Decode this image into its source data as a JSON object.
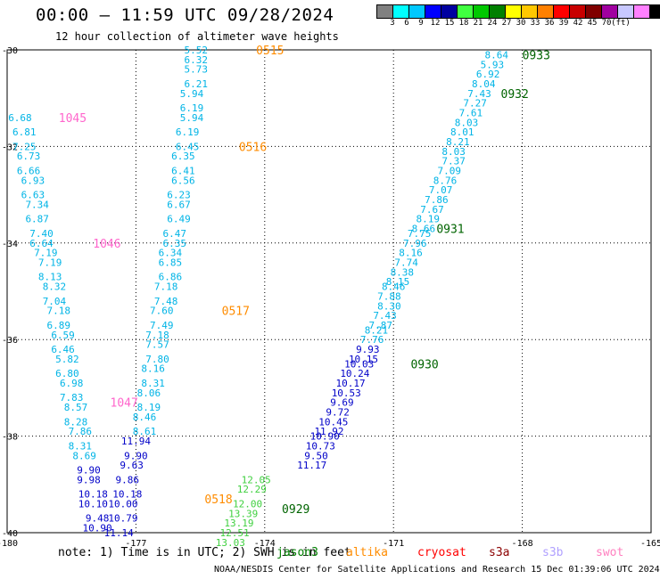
{
  "header": {
    "title": "00:00 – 11:59 UTC 09/28/2024",
    "subtitle": "12 hour collection of altimeter wave heights"
  },
  "legend": {
    "colors": [
      "#808080",
      "#00ffff",
      "#00c8ff",
      "#0000ff",
      "#0000a0",
      "#40ff40",
      "#00c800",
      "#008000",
      "#ffff00",
      "#ffc800",
      "#ff8000",
      "#ff0000",
      "#c80000",
      "#800000",
      "#a000a0",
      "#c8c8ff",
      "#ff80ff",
      "#000000"
    ],
    "labels": [
      "3",
      "6",
      "9",
      "12",
      "15",
      "18",
      "21",
      "24",
      "27",
      "30",
      "33",
      "36",
      "39",
      "42",
      "45",
      "70",
      "(ft)"
    ]
  },
  "map": {
    "lon_ticks": [
      "-180",
      "-177",
      "-174",
      "-171",
      "-168",
      "-165"
    ],
    "lat_ticks": [
      "-30",
      "-32",
      "-34",
      "-36",
      "-38",
      "-40"
    ],
    "lon_values": [
      -180,
      -177,
      -174,
      -171,
      -168,
      -165
    ],
    "lat_values": [
      -30,
      -32,
      -34,
      -36,
      -38,
      -40
    ],
    "lon_range": [
      -180,
      -165
    ],
    "lat_range": [
      -40,
      -30
    ],
    "grid": "dotted",
    "time_labels": [
      {
        "text": "0515",
        "lon": -174.2,
        "lat": -30.0,
        "color": "#ff8c00"
      },
      {
        "text": "0516",
        "lon": -174.6,
        "lat": -32.0,
        "color": "#ff8c00"
      },
      {
        "text": "0517",
        "lon": -175.0,
        "lat": -35.4,
        "color": "#ff8c00"
      },
      {
        "text": "0518",
        "lon": -175.4,
        "lat": -39.3,
        "color": "#ff8c00"
      },
      {
        "text": "1045",
        "lon": -178.8,
        "lat": -31.4,
        "color": "#ff66cc"
      },
      {
        "text": "1046",
        "lon": -178.0,
        "lat": -34.0,
        "color": "#ff66cc"
      },
      {
        "text": "1047",
        "lon": -177.6,
        "lat": -37.3,
        "color": "#ff66cc"
      },
      {
        "text": "0929",
        "lon": -173.6,
        "lat": -39.5,
        "color": "#006400"
      },
      {
        "text": "0930",
        "lon": -170.6,
        "lat": -36.5,
        "color": "#006400"
      },
      {
        "text": "0931",
        "lon": -170.0,
        "lat": -33.7,
        "color": "#006400"
      },
      {
        "text": "0932",
        "lon": -168.5,
        "lat": -30.9,
        "color": "#006400"
      },
      {
        "text": "0933",
        "lon": -168.0,
        "lat": -30.1,
        "color": "#006400"
      }
    ],
    "tracks": [
      {
        "name": "track-0515",
        "color": "#00b4e6",
        "points": [
          {
            "v": "5.52",
            "lon": -175.6,
            "lat": -30.0
          },
          {
            "v": "6.32",
            "lon": -175.6,
            "lat": -30.2
          },
          {
            "v": "5.73",
            "lon": -175.6,
            "lat": -30.4
          },
          {
            "v": "6.21",
            "lon": -175.6,
            "lat": -30.7
          },
          {
            "v": "5.94",
            "lon": -175.7,
            "lat": -30.9
          },
          {
            "v": "6.19",
            "lon": -175.7,
            "lat": -31.2
          },
          {
            "v": "5.94",
            "lon": -175.7,
            "lat": -31.4
          },
          {
            "v": "6.19",
            "lon": -175.8,
            "lat": -31.7
          },
          {
            "v": "6.45",
            "lon": -175.8,
            "lat": -32.0
          },
          {
            "v": "6.35",
            "lon": -175.9,
            "lat": -32.2
          },
          {
            "v": "6.41",
            "lon": -175.9,
            "lat": -32.5
          },
          {
            "v": "6.56",
            "lon": -175.9,
            "lat": -32.7
          },
          {
            "v": "6.23",
            "lon": -176.0,
            "lat": -33.0
          },
          {
            "v": "6.67",
            "lon": -176.0,
            "lat": -33.2
          },
          {
            "v": "6.49",
            "lon": -176.0,
            "lat": -33.5
          },
          {
            "v": "6.47",
            "lon": -176.1,
            "lat": -33.8
          },
          {
            "v": "6.35",
            "lon": -176.1,
            "lat": -34.0
          },
          {
            "v": "6.34",
            "lon": -176.2,
            "lat": -34.2
          },
          {
            "v": "6.85",
            "lon": -176.2,
            "lat": -34.4
          },
          {
            "v": "6.86",
            "lon": -176.2,
            "lat": -34.7
          },
          {
            "v": "7.18",
            "lon": -176.3,
            "lat": -34.9
          },
          {
            "v": "7.48",
            "lon": -176.3,
            "lat": -35.2
          },
          {
            "v": "7.60",
            "lon": -176.4,
            "lat": -35.4
          },
          {
            "v": "7.49",
            "lon": -176.4,
            "lat": -35.7
          },
          {
            "v": "7.18",
            "lon": -176.5,
            "lat": -35.9
          },
          {
            "v": "7.57",
            "lon": -176.5,
            "lat": -36.1
          },
          {
            "v": "7.80",
            "lon": -176.5,
            "lat": -36.4
          },
          {
            "v": "8.16",
            "lon": -176.6,
            "lat": -36.6
          },
          {
            "v": "8.31",
            "lon": -176.6,
            "lat": -36.9
          },
          {
            "v": "8.06",
            "lon": -176.7,
            "lat": -37.1
          },
          {
            "v": "8.19",
            "lon": -176.7,
            "lat": -37.4
          },
          {
            "v": "8.46",
            "lon": -176.8,
            "lat": -37.6
          },
          {
            "v": "8.61",
            "lon": -176.8,
            "lat": -37.9
          }
        ]
      },
      {
        "name": "track-0518",
        "color": "#0000c8",
        "points": [
          {
            "v": "11.94",
            "lon": -177.0,
            "lat": -38.1
          },
          {
            "v": "9.90",
            "lon": -177.0,
            "lat": -38.4
          },
          {
            "v": "9.63",
            "lon": -177.1,
            "lat": -38.6
          },
          {
            "v": "9.86",
            "lon": -177.2,
            "lat": -38.9
          },
          {
            "v": "10.18",
            "lon": -177.2,
            "lat": -39.2
          },
          {
            "v": "10.00",
            "lon": -177.3,
            "lat": -39.4
          },
          {
            "v": "10.79",
            "lon": -177.3,
            "lat": -39.7
          },
          {
            "v": "11.14",
            "lon": -177.4,
            "lat": -40.0
          }
        ]
      },
      {
        "name": "track-1045",
        "color": "#00b4e6",
        "points": [
          {
            "v": "6.68",
            "lon": -179.7,
            "lat": -31.4
          },
          {
            "v": "6.81",
            "lon": -179.6,
            "lat": -31.7
          },
          {
            "v": "7.25",
            "lon": -179.6,
            "lat": -32.0
          },
          {
            "v": "6.73",
            "lon": -179.5,
            "lat": -32.2
          },
          {
            "v": "6.66",
            "lon": -179.5,
            "lat": -32.5
          },
          {
            "v": "6.93",
            "lon": -179.4,
            "lat": -32.7
          },
          {
            "v": "6.63",
            "lon": -179.4,
            "lat": -33.0
          },
          {
            "v": "7.34",
            "lon": -179.3,
            "lat": -33.2
          },
          {
            "v": "6.87",
            "lon": -179.3,
            "lat": -33.5
          },
          {
            "v": "7.40",
            "lon": -179.2,
            "lat": -33.8
          },
          {
            "v": "6.64",
            "lon": -179.2,
            "lat": -34.0
          },
          {
            "v": "7.19",
            "lon": -179.1,
            "lat": -34.2
          },
          {
            "v": "7.19",
            "lon": -179.0,
            "lat": -34.4
          },
          {
            "v": "8.13",
            "lon": -179.0,
            "lat": -34.7
          },
          {
            "v": "8.32",
            "lon": -178.9,
            "lat": -34.9
          },
          {
            "v": "7.04",
            "lon": -178.9,
            "lat": -35.2
          },
          {
            "v": "7.18",
            "lon": -178.8,
            "lat": -35.4
          },
          {
            "v": "6.89",
            "lon": -178.8,
            "lat": -35.7
          },
          {
            "v": "6.59",
            "lon": -178.7,
            "lat": -35.9
          },
          {
            "v": "6.46",
            "lon": -178.7,
            "lat": -36.2
          },
          {
            "v": "5.82",
            "lon": -178.6,
            "lat": -36.4
          },
          {
            "v": "6.80",
            "lon": -178.6,
            "lat": -36.7
          },
          {
            "v": "6.98",
            "lon": -178.5,
            "lat": -36.9
          },
          {
            "v": "7.83",
            "lon": -178.5,
            "lat": -37.2
          },
          {
            "v": "8.57",
            "lon": -178.4,
            "lat": -37.4
          },
          {
            "v": "8.28",
            "lon": -178.4,
            "lat": -37.7
          },
          {
            "v": "7.86",
            "lon": -178.3,
            "lat": -37.9
          },
          {
            "v": "8.31",
            "lon": -178.3,
            "lat": -38.2
          },
          {
            "v": "8.69",
            "lon": -178.2,
            "lat": -38.4
          }
        ]
      },
      {
        "name": "track-1047",
        "color": "#0000c8",
        "points": [
          {
            "v": "9.90",
            "lon": -178.1,
            "lat": -38.7
          },
          {
            "v": "9.98",
            "lon": -178.1,
            "lat": -38.9
          },
          {
            "v": "10.18",
            "lon": -178.0,
            "lat": -39.2
          },
          {
            "v": "10.10",
            "lon": -178.0,
            "lat": -39.4
          },
          {
            "v": "9.48",
            "lon": -177.9,
            "lat": -39.7
          },
          {
            "v": "10.90",
            "lon": -177.9,
            "lat": -39.9
          }
        ]
      },
      {
        "name": "track-0929",
        "color": "#40d040",
        "points": [
          {
            "v": "12.05",
            "lon": -174.2,
            "lat": -38.9
          },
          {
            "v": "12.29",
            "lon": -174.3,
            "lat": -39.1
          },
          {
            "v": "12.00",
            "lon": -174.4,
            "lat": -39.4
          },
          {
            "v": "13.39",
            "lon": -174.5,
            "lat": -39.6
          },
          {
            "v": "13.19",
            "lon": -174.6,
            "lat": -39.8
          },
          {
            "v": "12.51",
            "lon": -174.7,
            "lat": -40.0
          },
          {
            "v": "13.03",
            "lon": -174.8,
            "lat": -40.2
          }
        ]
      },
      {
        "name": "track-0930",
        "color": "#0000c8",
        "points": [
          {
            "v": "9.93",
            "lon": -171.6,
            "lat": -36.2
          },
          {
            "v": "10.15",
            "lon": -171.7,
            "lat": -36.4
          },
          {
            "v": "10.03",
            "lon": -171.8,
            "lat": -36.5
          },
          {
            "v": "10.24",
            "lon": -171.9,
            "lat": -36.7
          },
          {
            "v": "10.17",
            "lon": -172.0,
            "lat": -36.9
          },
          {
            "v": "10.53",
            "lon": -172.1,
            "lat": -37.1
          },
          {
            "v": "9.69",
            "lon": -172.2,
            "lat": -37.3
          },
          {
            "v": "9.72",
            "lon": -172.3,
            "lat": -37.5
          },
          {
            "v": "10.45",
            "lon": -172.4,
            "lat": -37.7
          },
          {
            "v": "11.92",
            "lon": -172.5,
            "lat": -37.9
          },
          {
            "v": "10.90",
            "lon": -172.6,
            "lat": -38.0
          },
          {
            "v": "10.73",
            "lon": -172.7,
            "lat": -38.2
          },
          {
            "v": "9.50",
            "lon": -172.8,
            "lat": -38.4
          },
          {
            "v": "11.17",
            "lon": -172.9,
            "lat": -38.6
          }
        ]
      },
      {
        "name": "track-0933",
        "color": "#00b4e6",
        "points": [
          {
            "v": "8.64",
            "lon": -168.6,
            "lat": -30.1
          },
          {
            "v": "5.93",
            "lon": -168.7,
            "lat": -30.3
          },
          {
            "v": "6.92",
            "lon": -168.8,
            "lat": -30.5
          },
          {
            "v": "8.04",
            "lon": -168.9,
            "lat": -30.7
          },
          {
            "v": "7.43",
            "lon": -169.0,
            "lat": -30.9
          },
          {
            "v": "7.27",
            "lon": -169.1,
            "lat": -31.1
          },
          {
            "v": "7.61",
            "lon": -169.2,
            "lat": -31.3
          },
          {
            "v": "8.03",
            "lon": -169.3,
            "lat": -31.5
          },
          {
            "v": "8.01",
            "lon": -169.4,
            "lat": -31.7
          },
          {
            "v": "8.21",
            "lon": -169.5,
            "lat": -31.9
          },
          {
            "v": "8.03",
            "lon": -169.6,
            "lat": -32.1
          },
          {
            "v": "7.37",
            "lon": -169.6,
            "lat": -32.3
          },
          {
            "v": "7.09",
            "lon": -169.7,
            "lat": -32.5
          },
          {
            "v": "8.76",
            "lon": -169.8,
            "lat": -32.7
          },
          {
            "v": "7.07",
            "lon": -169.9,
            "lat": -32.9
          },
          {
            "v": "7.86",
            "lon": -170.0,
            "lat": -33.1
          },
          {
            "v": "7.67",
            "lon": -170.1,
            "lat": -33.3
          },
          {
            "v": "8.19",
            "lon": -170.2,
            "lat": -33.5
          },
          {
            "v": "8.66",
            "lon": -170.3,
            "lat": -33.7
          },
          {
            "v": "7.75",
            "lon": -170.4,
            "lat": -33.8
          },
          {
            "v": "7.96",
            "lon": -170.5,
            "lat": -34.0
          },
          {
            "v": "8.16",
            "lon": -170.6,
            "lat": -34.2
          },
          {
            "v": "7.74",
            "lon": -170.7,
            "lat": -34.4
          },
          {
            "v": "8.38",
            "lon": -170.8,
            "lat": -34.6
          },
          {
            "v": "8.15",
            "lon": -170.9,
            "lat": -34.8
          },
          {
            "v": "8.46",
            "lon": -171.0,
            "lat": -34.9
          },
          {
            "v": "7.88",
            "lon": -171.1,
            "lat": -35.1
          },
          {
            "v": "8.30",
            "lon": -171.1,
            "lat": -35.3
          },
          {
            "v": "7.43",
            "lon": -171.2,
            "lat": -35.5
          },
          {
            "v": "7.87",
            "lon": -171.3,
            "lat": -35.7
          },
          {
            "v": "8.21",
            "lon": -171.4,
            "lat": -35.8
          },
          {
            "v": "7.76",
            "lon": -171.5,
            "lat": -36.0
          }
        ]
      }
    ]
  },
  "footer": {
    "note": "note:  1) Time is in UTC; 2) SWH is in feet",
    "satellites": [
      {
        "name": "jason3",
        "color": "#008000"
      },
      {
        "name": "altika",
        "color": "#ff8c00"
      },
      {
        "name": "cryosat",
        "color": "#ff0000"
      },
      {
        "name": "s3a",
        "color": "#8b0000"
      },
      {
        "name": "s3b",
        "color": "#b0a0ff"
      },
      {
        "name": "swot",
        "color": "#ff80c0"
      }
    ],
    "credit": "NOAA/NESDIS Center for Satellite Applications and Research    15 Dec 01:39:06 UTC 2024"
  }
}
